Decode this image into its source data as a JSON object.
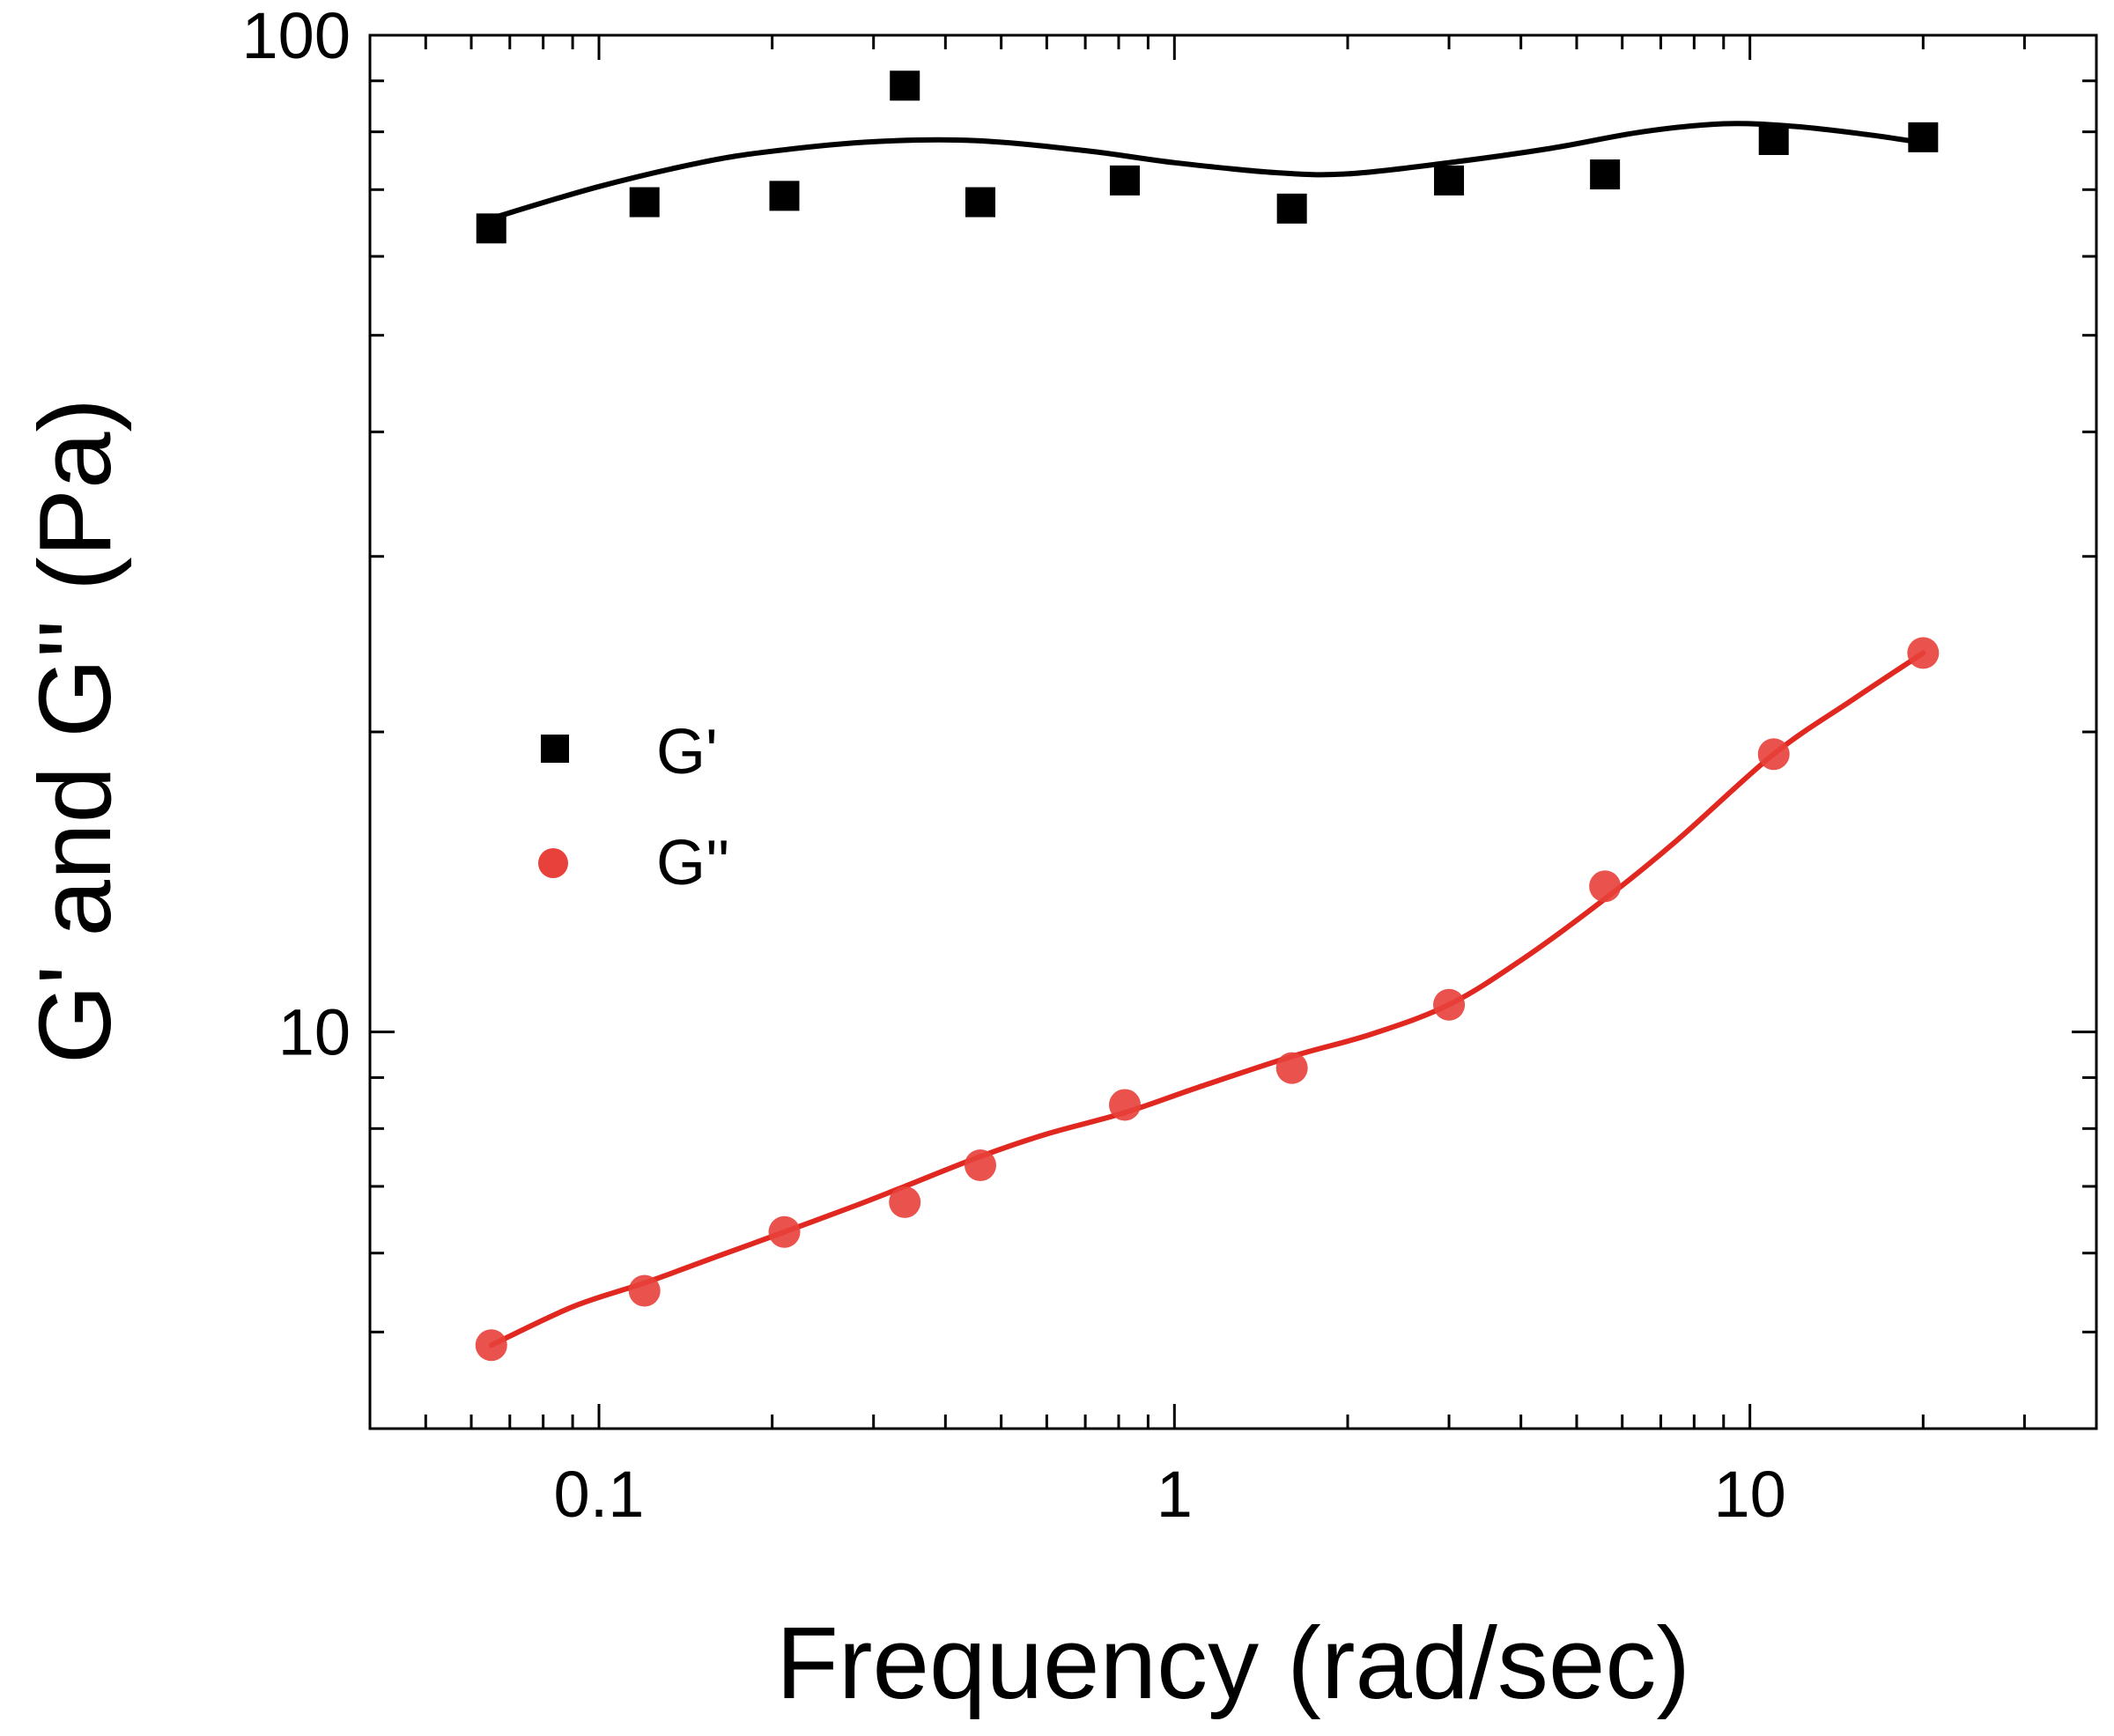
{
  "chart_data": {
    "type": "scatter",
    "title": "",
    "xlabel": "Frequency (rad/sec)",
    "ylabel": "G' and G'' (Pa)",
    "xscale": "log",
    "yscale": "log",
    "xlim": [
      0.04,
      40
    ],
    "ylim": [
      4,
      100
    ],
    "xticks": [
      {
        "value": 0.1,
        "label": "0.1"
      },
      {
        "value": 1,
        "label": "1"
      },
      {
        "value": 10,
        "label": "10"
      }
    ],
    "yticks": [
      {
        "value": 10,
        "label": "10"
      },
      {
        "value": 100,
        "label": "100"
      }
    ],
    "grid": false,
    "legend_position": "center-left",
    "series": [
      {
        "name": "G'",
        "marker": "square",
        "color": "#000000",
        "x": [
          0.065,
          0.12,
          0.21,
          0.34,
          0.46,
          0.82,
          1.6,
          3.0,
          5.6,
          11.0,
          20.0
        ],
        "y": [
          64,
          68,
          69,
          89,
          68,
          71.5,
          67,
          71.5,
          72.5,
          78.5,
          79
        ]
      },
      {
        "name": "G''",
        "marker": "circle",
        "color": "#e8403a",
        "x": [
          0.065,
          0.12,
          0.21,
          0.34,
          0.46,
          0.82,
          1.6,
          3.0,
          5.6,
          11.0,
          20.0
        ],
        "y": [
          4.85,
          5.5,
          6.3,
          6.75,
          7.35,
          8.45,
          9.2,
          10.65,
          14.0,
          19.0,
          24.0
        ]
      }
    ],
    "fits": [
      {
        "series": "G'",
        "color": "#000000",
        "x": [
          0.065,
          0.1,
          0.15,
          0.2,
          0.3,
          0.45,
          0.7,
          1.0,
          1.5,
          2.0,
          3.0,
          4.5,
          6.5,
          9.0,
          12.0,
          16.0,
          20.0
        ],
        "y": [
          65.5,
          70.5,
          74.5,
          76.5,
          78.2,
          78.4,
          76.6,
          74.5,
          72.8,
          72.6,
          74.5,
          77.0,
          80.0,
          81.5,
          81.0,
          79.5,
          78.0
        ]
      },
      {
        "series": "G''",
        "color": "#e02820",
        "x": [
          0.065,
          0.09,
          0.12,
          0.16,
          0.21,
          0.28,
          0.34,
          0.46,
          0.6,
          0.82,
          1.1,
          1.6,
          2.2,
          3.0,
          4.0,
          5.6,
          7.5,
          11.0,
          15.0,
          20.0
        ],
        "y": [
          4.85,
          5.3,
          5.6,
          5.95,
          6.3,
          6.7,
          7.0,
          7.5,
          7.9,
          8.3,
          8.8,
          9.45,
          9.95,
          10.65,
          11.8,
          13.6,
          15.6,
          19.0,
          21.5,
          24.0
        ]
      }
    ]
  }
}
